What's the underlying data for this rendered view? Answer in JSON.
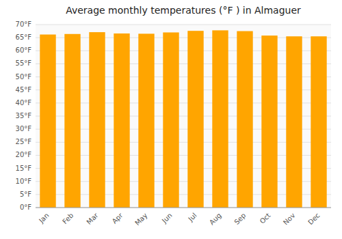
{
  "chart_data": {
    "type": "bar",
    "title": "Average monthly temperatures (°F ) in Almaguer",
    "categories": [
      "Jan",
      "Feb",
      "Mar",
      "Apr",
      "May",
      "Jun",
      "Jul",
      "Aug",
      "Sep",
      "Oct",
      "Nov",
      "Dec"
    ],
    "values": [
      66.2,
      66.4,
      67.1,
      66.6,
      66.5,
      67.0,
      67.6,
      67.8,
      67.5,
      65.8,
      65.5,
      65.5
    ],
    "color": "#FFA500",
    "ylim": [
      0,
      70
    ],
    "yticks": [
      {
        "value": 0,
        "label": "0°F"
      },
      {
        "value": 5,
        "label": "5°F"
      },
      {
        "value": 10,
        "label": "10°F"
      },
      {
        "value": 15,
        "label": "15°F"
      },
      {
        "value": 20,
        "label": "20°F"
      },
      {
        "value": 25,
        "label": "25°F"
      },
      {
        "value": 30,
        "label": "30°F"
      },
      {
        "value": 35,
        "label": "35°F"
      },
      {
        "value": 40,
        "label": "40°F"
      },
      {
        "value": 45,
        "label": "45°F"
      },
      {
        "value": 50,
        "label": "50°F"
      },
      {
        "value": 55,
        "label": "55°F"
      },
      {
        "value": 60,
        "label": "60°F"
      },
      {
        "value": 65,
        "label": "65°F"
      },
      {
        "value": 70,
        "label": "70°F"
      }
    ],
    "grid": true
  }
}
